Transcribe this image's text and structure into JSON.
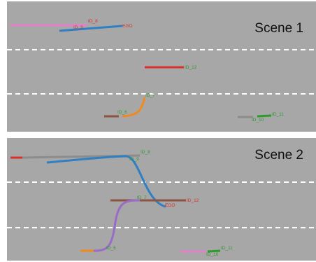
{
  "colors": {
    "background": "#a7a7a7",
    "lane_line": "#ffffff",
    "ego": "#2f7fc4",
    "red": "#d9302b",
    "pink": "#e47fc9",
    "orange": "#f08a1e",
    "brown": "#8b5342",
    "gray": "#8c8c8c",
    "green": "#2e9a2e",
    "purple": "#9a6cc7",
    "label_red": "#d9302b",
    "label_green": "#2e9a2e"
  },
  "scenes": [
    {
      "title": "Scene 1",
      "labels": {
        "id8": "ID_8",
        "id9": "ID_9",
        "ego": "EGO",
        "id12": "ID_12",
        "id7": "ID_7",
        "id6": "ID_6",
        "id10": "ID_10",
        "id11": "ID_11"
      }
    },
    {
      "title": "Scene 2",
      "labels": {
        "id8": "ID_8",
        "id9": "ID_9",
        "id7": "ID_7",
        "id12": "ID_12",
        "ego": "EGO",
        "id6": "ID_6",
        "id11": "ID_11",
        "id10": "ID_10"
      }
    }
  ]
}
